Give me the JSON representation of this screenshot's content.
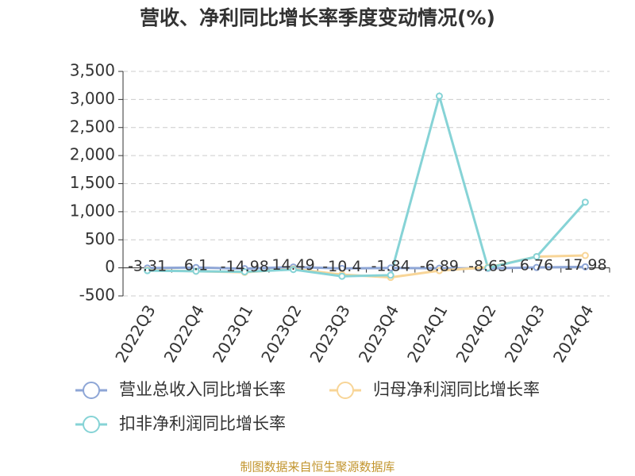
{
  "chart_data": {
    "type": "line",
    "title": "营收、净利同比增长率季度变动情况(%)",
    "categories": [
      "2022Q3",
      "2022Q4",
      "2023Q1",
      "2023Q2",
      "2023Q3",
      "2023Q4",
      "2024Q1",
      "2024Q2",
      "2024Q3",
      "2024Q4"
    ],
    "series": [
      {
        "name": "营业总收入同比增长率",
        "color": "#8ea6d6",
        "show_values": true,
        "values": [
          -3.31,
          6.1,
          -14.98,
          14.49,
          -10.4,
          -1.84,
          -6.89,
          -8.63,
          6.76,
          17.98
        ]
      },
      {
        "name": "归母净利润同比增长率",
        "color": "#f8d597",
        "values": [
          -40,
          -60,
          -80,
          -20,
          -120,
          -170,
          -50,
          10,
          200,
          220
        ]
      },
      {
        "name": "扣非净利润同比增长率",
        "color": "#86d3d6",
        "values": [
          -50,
          -60,
          -70,
          -30,
          -150,
          -130,
          3060,
          0,
          200,
          1170
        ]
      }
    ],
    "ylim": [
      -500,
      3500
    ],
    "yticks": [
      -500,
      0,
      500,
      {
        "value": 1000,
        "label": "1,000"
      },
      {
        "value": 1500,
        "label": "1,500"
      },
      {
        "value": 2000,
        "label": "2,000"
      },
      {
        "value": 2500,
        "label": "2,500"
      },
      {
        "value": 3000,
        "label": "3,000"
      },
      {
        "value": 3500,
        "label": "3,500"
      }
    ],
    "grid": true,
    "source": "制图数据来自恒生聚源数据库"
  }
}
